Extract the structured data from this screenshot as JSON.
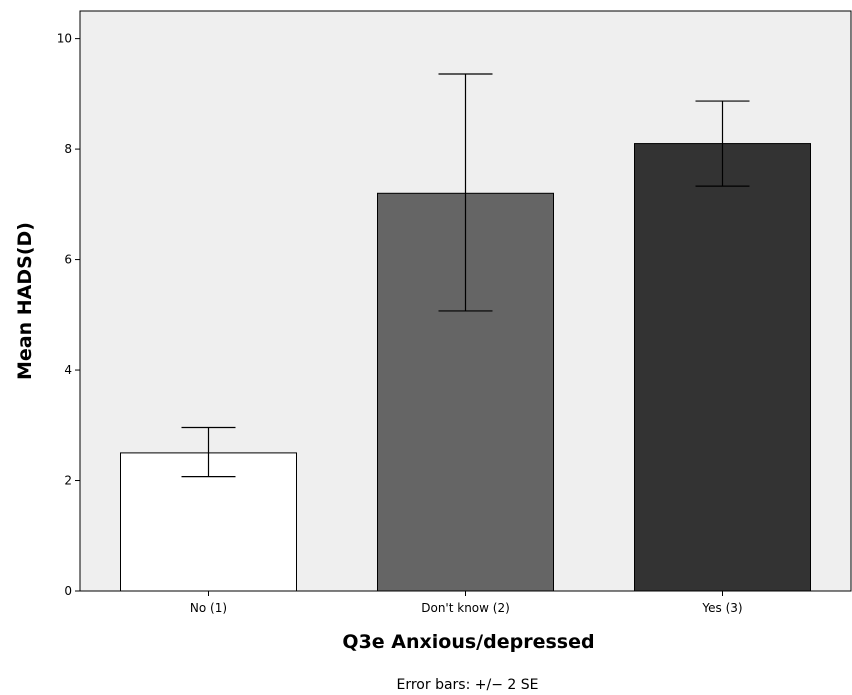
{
  "chart_data": {
    "type": "bar",
    "categories": [
      "No (1)",
      "Don't know (2)",
      "Yes (3)"
    ],
    "values": [
      2.5,
      7.2,
      8.1
    ],
    "error_low": [
      2.07,
      5.07,
      7.33
    ],
    "error_high": [
      2.96,
      9.36,
      8.87
    ],
    "bar_colors": [
      "#ffffff",
      "#656565",
      "#333333"
    ],
    "plot_background": "#efefef",
    "xlabel": "Q3e Anxious/depressed",
    "ylabel": "Mean HADS(D)",
    "ylim": [
      0,
      10.5
    ],
    "yticks": [
      0,
      2,
      4,
      6,
      8,
      10
    ],
    "footnote": "Error bars: +/− 2 SE",
    "grid": false,
    "legend": "none"
  }
}
